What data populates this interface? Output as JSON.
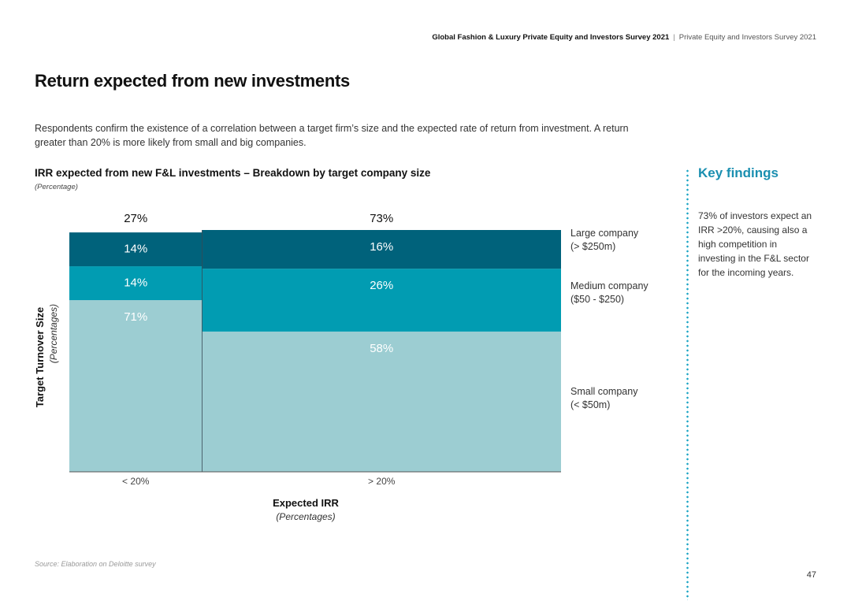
{
  "header": {
    "report_title": "Global Fashion & Luxury Private Equity and Investors Survey 2021",
    "separator": "|",
    "section": "Private Equity and Investors Survey 2021"
  },
  "page": {
    "title": "Return expected from new investments",
    "intro": "Respondents confirm the existence of a correlation between a target firm’s size and the expected rate of return from investment. A return greater than 20% is more likely from small and big companies.",
    "source": "Source: Elaboration on Deloitte survey",
    "page_number": "47"
  },
  "key_findings": {
    "title": "Key findings",
    "text": "73% of investors expect an IRR >20%, causing also a high competition in investing in the F&L sector for the incoming years."
  },
  "chart_data": {
    "type": "bar",
    "subtype": "marimekko",
    "title": "IRR expected from new F&L investments – Breakdown by target company size",
    "subtitle": "(Percentage)",
    "xlabel": "Expected IRR",
    "xlabel_sub": "(Percentages)",
    "ylabel": "Target Turnover Size",
    "ylabel_sub": "(Percentages)",
    "categories": [
      "< 20%",
      "> 20%"
    ],
    "category_shares": [
      27,
      73
    ],
    "category_share_labels": [
      "27%",
      "73%"
    ],
    "ylim": [
      0,
      100
    ],
    "series": [
      {
        "name": "Small company",
        "name_line2": "(< $50m)",
        "values": [
          71,
          58
        ],
        "labels": [
          "71%",
          "58%"
        ],
        "color": "#9ccdd2"
      },
      {
        "name": "Medium company",
        "name_line2": "($50 - $250)",
        "values": [
          14,
          26
        ],
        "labels": [
          "14%",
          "26%"
        ],
        "color": "#019cb2"
      },
      {
        "name": "Large company",
        "name_line2": "(> $250m)",
        "values": [
          14,
          16
        ],
        "labels": [
          "14%",
          "16%"
        ],
        "color": "#00627b"
      }
    ],
    "legend_position": "right",
    "grid": false
  }
}
